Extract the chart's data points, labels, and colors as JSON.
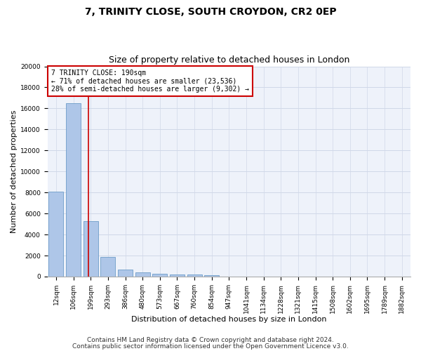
{
  "title1": "7, TRINITY CLOSE, SOUTH CROYDON, CR2 0EP",
  "title2": "Size of property relative to detached houses in London",
  "xlabel": "Distribution of detached houses by size in London",
  "ylabel": "Number of detached properties",
  "categories": [
    "12sqm",
    "106sqm",
    "199sqm",
    "293sqm",
    "386sqm",
    "480sqm",
    "573sqm",
    "667sqm",
    "760sqm",
    "854sqm",
    "947sqm",
    "1041sqm",
    "1134sqm",
    "1228sqm",
    "1321sqm",
    "1415sqm",
    "1508sqm",
    "1602sqm",
    "1695sqm",
    "1789sqm",
    "1882sqm"
  ],
  "values": [
    8100,
    16500,
    5300,
    1850,
    700,
    370,
    280,
    230,
    180,
    140,
    0,
    0,
    0,
    0,
    0,
    0,
    0,
    0,
    0,
    0,
    0
  ],
  "bar_color": "#aec6e8",
  "bar_edge_color": "#5a8fc0",
  "vline_x": 1.87,
  "vline_color": "#cc0000",
  "annotation_text": "7 TRINITY CLOSE: 190sqm\n← 71% of detached houses are smaller (23,536)\n28% of semi-detached houses are larger (9,302) →",
  "annotation_box_color": "#ffffff",
  "annotation_box_edge": "#cc0000",
  "ylim": [
    0,
    20000
  ],
  "yticks": [
    0,
    2000,
    4000,
    6000,
    8000,
    10000,
    12000,
    14000,
    16000,
    18000,
    20000
  ],
  "footer1": "Contains HM Land Registry data © Crown copyright and database right 2024.",
  "footer2": "Contains public sector information licensed under the Open Government Licence v3.0.",
  "grid_color": "#d0d8e8",
  "bg_color": "#eef2fa",
  "title1_fontsize": 10,
  "title2_fontsize": 9,
  "xlabel_fontsize": 8,
  "ylabel_fontsize": 8,
  "tick_fontsize": 6.5,
  "footer_fontsize": 6.5,
  "annot_fontsize": 7
}
